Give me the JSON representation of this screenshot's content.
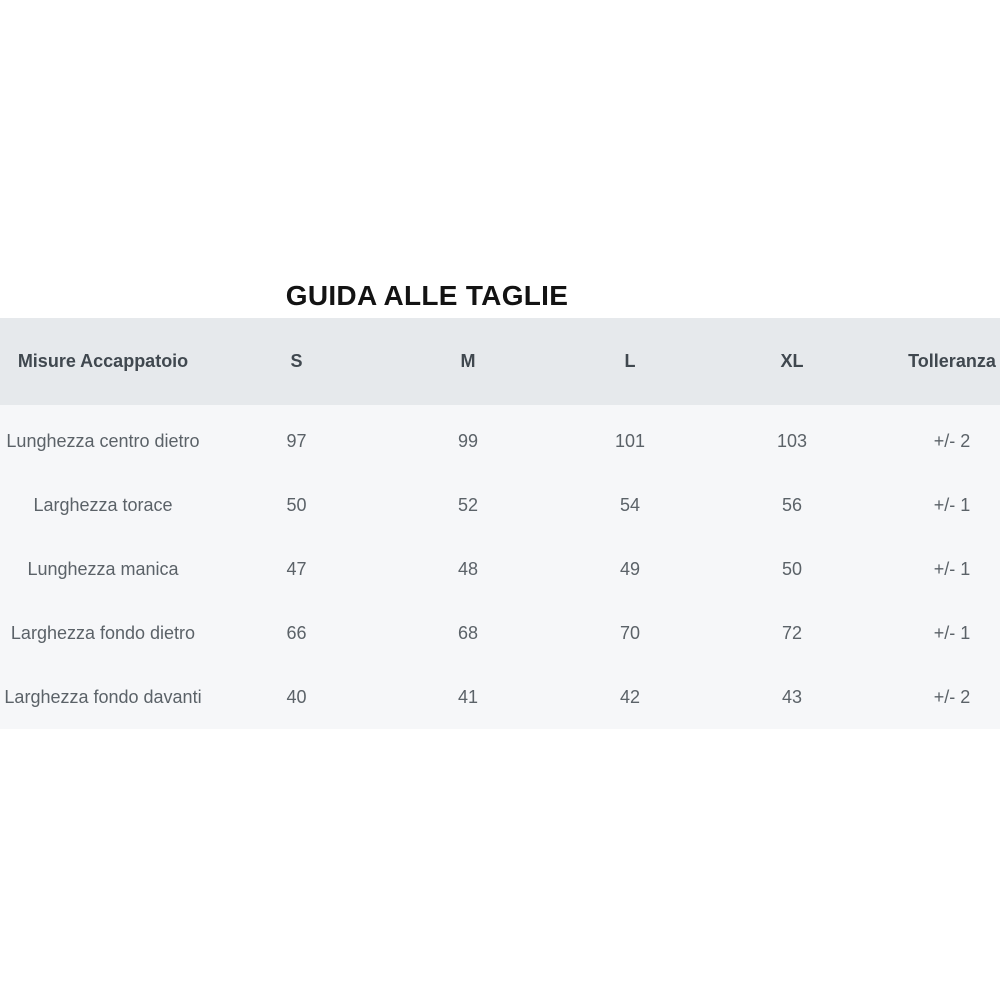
{
  "page": {
    "title": "GUIDA ALLE TAGLIE"
  },
  "colors": {
    "header_background": "#e6e9ec",
    "body_background": "#f6f7f9",
    "header_text": "#40484f",
    "body_text": "#5b6268",
    "title_text": "#131313",
    "page_background": "#ffffff"
  },
  "table": {
    "columns": [
      "Misure Accappatoio",
      "S",
      "M",
      "L",
      "XL",
      "Tolleranza"
    ],
    "rows": [
      {
        "label": "Lunghezza centro dietro",
        "values": [
          "97",
          "99",
          "101",
          "103",
          "+/- 2"
        ]
      },
      {
        "label": "Larghezza torace",
        "values": [
          "50",
          "52",
          "54",
          "56",
          "+/- 1"
        ]
      },
      {
        "label": "Lunghezza manica",
        "values": [
          "47",
          "48",
          "49",
          "50",
          "+/- 1"
        ]
      },
      {
        "label": "Larghezza fondo dietro",
        "values": [
          "66",
          "68",
          "70",
          "72",
          "+/- 1"
        ]
      },
      {
        "label": "Larghezza fondo davanti",
        "values": [
          "40",
          "41",
          "42",
          "43",
          "+/- 2"
        ]
      }
    ]
  }
}
